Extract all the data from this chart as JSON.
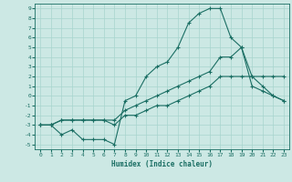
{
  "title": "",
  "xlabel": "Humidex (Indice chaleur)",
  "bg_color": "#cce8e4",
  "grid_color": "#a8d4ce",
  "line_color": "#1a6e63",
  "xlim": [
    -0.5,
    23.5
  ],
  "ylim": [
    -5.5,
    9.5
  ],
  "xticks": [
    0,
    1,
    2,
    3,
    4,
    5,
    6,
    7,
    8,
    9,
    10,
    11,
    12,
    13,
    14,
    15,
    16,
    17,
    18,
    19,
    20,
    21,
    22,
    23
  ],
  "yticks": [
    -5,
    -4,
    -3,
    -2,
    -1,
    0,
    1,
    2,
    3,
    4,
    5,
    6,
    7,
    8,
    9
  ],
  "line1_x": [
    0,
    1,
    2,
    3,
    4,
    5,
    6,
    7,
    8,
    9,
    10,
    11,
    12,
    13,
    14,
    15,
    16,
    17,
    18,
    19,
    20,
    21,
    22,
    23
  ],
  "line1_y": [
    -3,
    -3,
    -4,
    -3.5,
    -4.5,
    -4.5,
    -4.5,
    -5,
    -0.5,
    0,
    2,
    3,
    3.5,
    5,
    7.5,
    8.5,
    9,
    9,
    6,
    5,
    2,
    1,
    0,
    -0.5
  ],
  "line2_x": [
    0,
    1,
    2,
    3,
    4,
    5,
    6,
    7,
    8,
    9,
    10,
    11,
    12,
    13,
    14,
    15,
    16,
    17,
    18,
    19,
    20,
    21,
    22,
    23
  ],
  "line2_y": [
    -3,
    -3,
    -2.5,
    -2.5,
    -2.5,
    -2.5,
    -2.5,
    -2.5,
    -1.5,
    -1,
    -0.5,
    0,
    0.5,
    1,
    1.5,
    2,
    2.5,
    4,
    4,
    5,
    1,
    0.5,
    0,
    -0.5
  ],
  "line3_x": [
    0,
    1,
    2,
    3,
    4,
    5,
    6,
    7,
    8,
    9,
    10,
    11,
    12,
    13,
    14,
    15,
    16,
    17,
    18,
    19,
    20,
    21,
    22,
    23
  ],
  "line3_y": [
    -3,
    -3,
    -2.5,
    -2.5,
    -2.5,
    -2.5,
    -2.5,
    -3,
    -2,
    -2,
    -1.5,
    -1,
    -1,
    -0.5,
    0,
    0.5,
    1,
    2,
    2,
    2,
    2,
    2,
    2,
    2
  ]
}
